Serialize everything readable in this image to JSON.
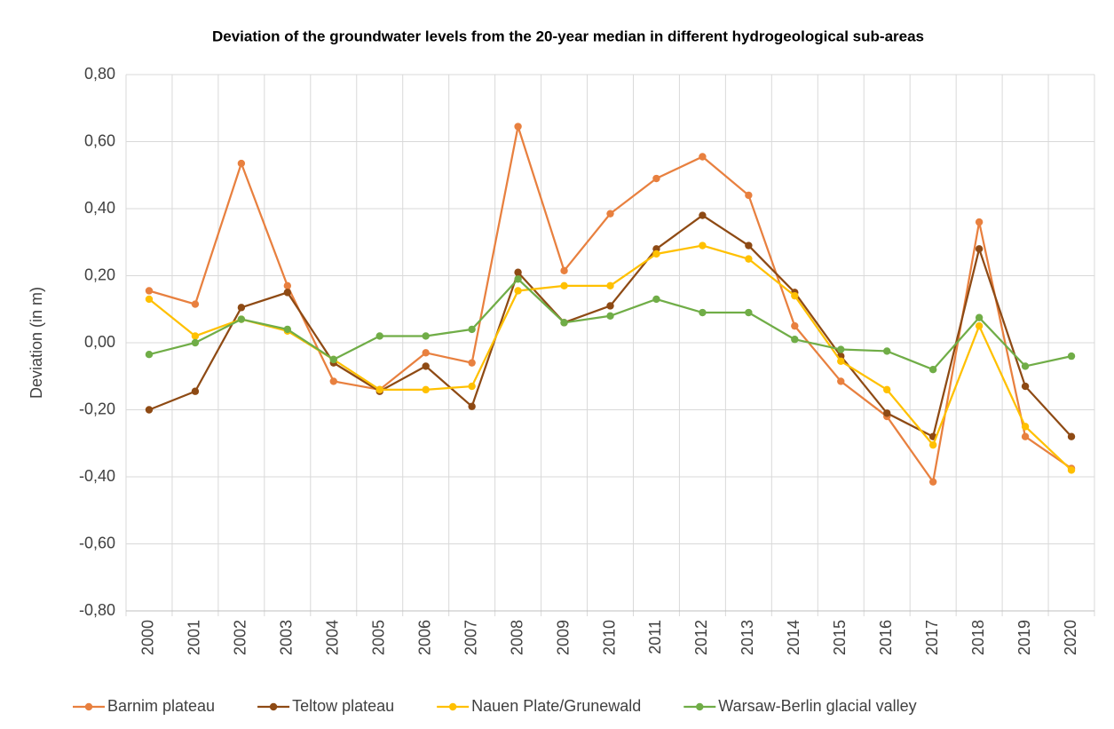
{
  "chart_data": {
    "type": "line",
    "title": "Deviation of the groundwater levels from the 20-year median in different hydrogeological sub-areas",
    "y_label": "Deviation (in m)",
    "categories": [
      "2000",
      "2001",
      "2002",
      "2003",
      "2004",
      "2005",
      "2006",
      "2007",
      "2008",
      "2009",
      "2010",
      "2011",
      "2012",
      "2013",
      "2014",
      "2015",
      "2016",
      "2017",
      "2018",
      "2019",
      "2020"
    ],
    "series": [
      {
        "name": "Barnim plateau",
        "color": "#E8803F",
        "values": [
          0.155,
          0.115,
          0.535,
          0.17,
          -0.115,
          -0.14,
          -0.03,
          -0.06,
          0.645,
          0.215,
          0.385,
          0.49,
          0.555,
          0.44,
          0.05,
          -0.115,
          -0.22,
          -0.415,
          0.36,
          -0.28,
          -0.375
        ]
      },
      {
        "name": "Teltow plateau",
        "color": "#8E4A14",
        "values": [
          -0.2,
          -0.145,
          0.105,
          0.15,
          -0.06,
          -0.145,
          -0.07,
          -0.19,
          0.21,
          0.06,
          0.11,
          0.28,
          0.38,
          0.29,
          0.15,
          -0.04,
          -0.21,
          -0.28,
          0.28,
          -0.13,
          -0.28
        ]
      },
      {
        "name": "Nauen Plate/Grunewald",
        "color": "#FFC000",
        "values": [
          0.13,
          0.02,
          0.07,
          0.035,
          -0.05,
          -0.14,
          -0.14,
          -0.13,
          0.155,
          0.17,
          0.17,
          0.265,
          0.29,
          0.25,
          0.14,
          -0.055,
          -0.14,
          -0.305,
          0.05,
          -0.25,
          -0.38
        ]
      },
      {
        "name": "Warsaw-Berlin glacial valley",
        "color": "#70AD47",
        "values": [
          -0.035,
          0.0,
          0.07,
          0.04,
          -0.05,
          0.02,
          0.02,
          0.04,
          0.19,
          0.06,
          0.08,
          0.13,
          0.09,
          0.09,
          0.01,
          -0.02,
          -0.025,
          -0.08,
          0.075,
          -0.07,
          -0.04
        ]
      }
    ],
    "ylim": [
      -0.8,
      0.8
    ],
    "yticks": [
      {
        "value": -0.8,
        "label": "-0,80"
      },
      {
        "value": -0.6,
        "label": "-0,60"
      },
      {
        "value": -0.4,
        "label": "-0,40"
      },
      {
        "value": -0.2,
        "label": "-0,20"
      },
      {
        "value": 0,
        "label": "0,00"
      },
      {
        "value": 0.2,
        "label": "0,20"
      },
      {
        "value": 0.4,
        "label": "0,40"
      },
      {
        "value": 0.6,
        "label": "0,60"
      },
      {
        "value": 0.8,
        "label": "0,80"
      }
    ],
    "grid": true,
    "legend": "bottom"
  }
}
